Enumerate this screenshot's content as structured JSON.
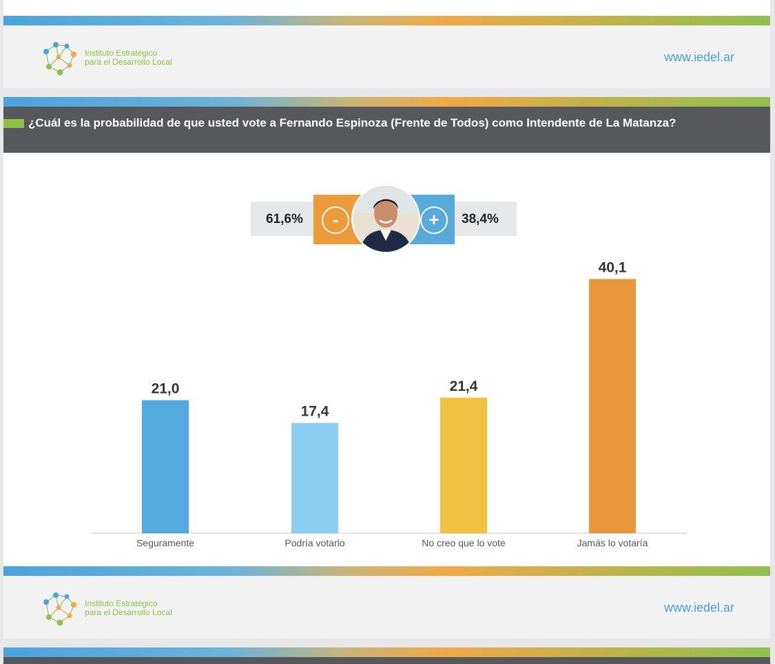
{
  "header": {
    "logo_line1": "Instituto Estratégico",
    "logo_line2": "para el Desarrollo Local",
    "url": "www.iedel.ar"
  },
  "title": "¿Cuál es la probabilidad de que usted vote a Fernando Espinoza (Frente de Todos) como Intendente de La Matanza?",
  "summary": {
    "negative_pct": "61,6%",
    "negative_symbol": "-",
    "positive_symbol": "+",
    "positive_pct": "38,4%"
  },
  "chart_data": {
    "type": "bar",
    "categories": [
      "Seguramente",
      "Podría votarlo",
      "No creo que lo vote",
      "Jamás lo votaría"
    ],
    "values": [
      21.0,
      17.4,
      21.4,
      40.1
    ],
    "labels": [
      "21,0",
      "17,4",
      "21,4",
      "40,1"
    ],
    "colors": [
      "#54aae0",
      "#8ccef2",
      "#f0c242",
      "#e8973b"
    ],
    "ylim": [
      0,
      42
    ],
    "grid": false
  }
}
